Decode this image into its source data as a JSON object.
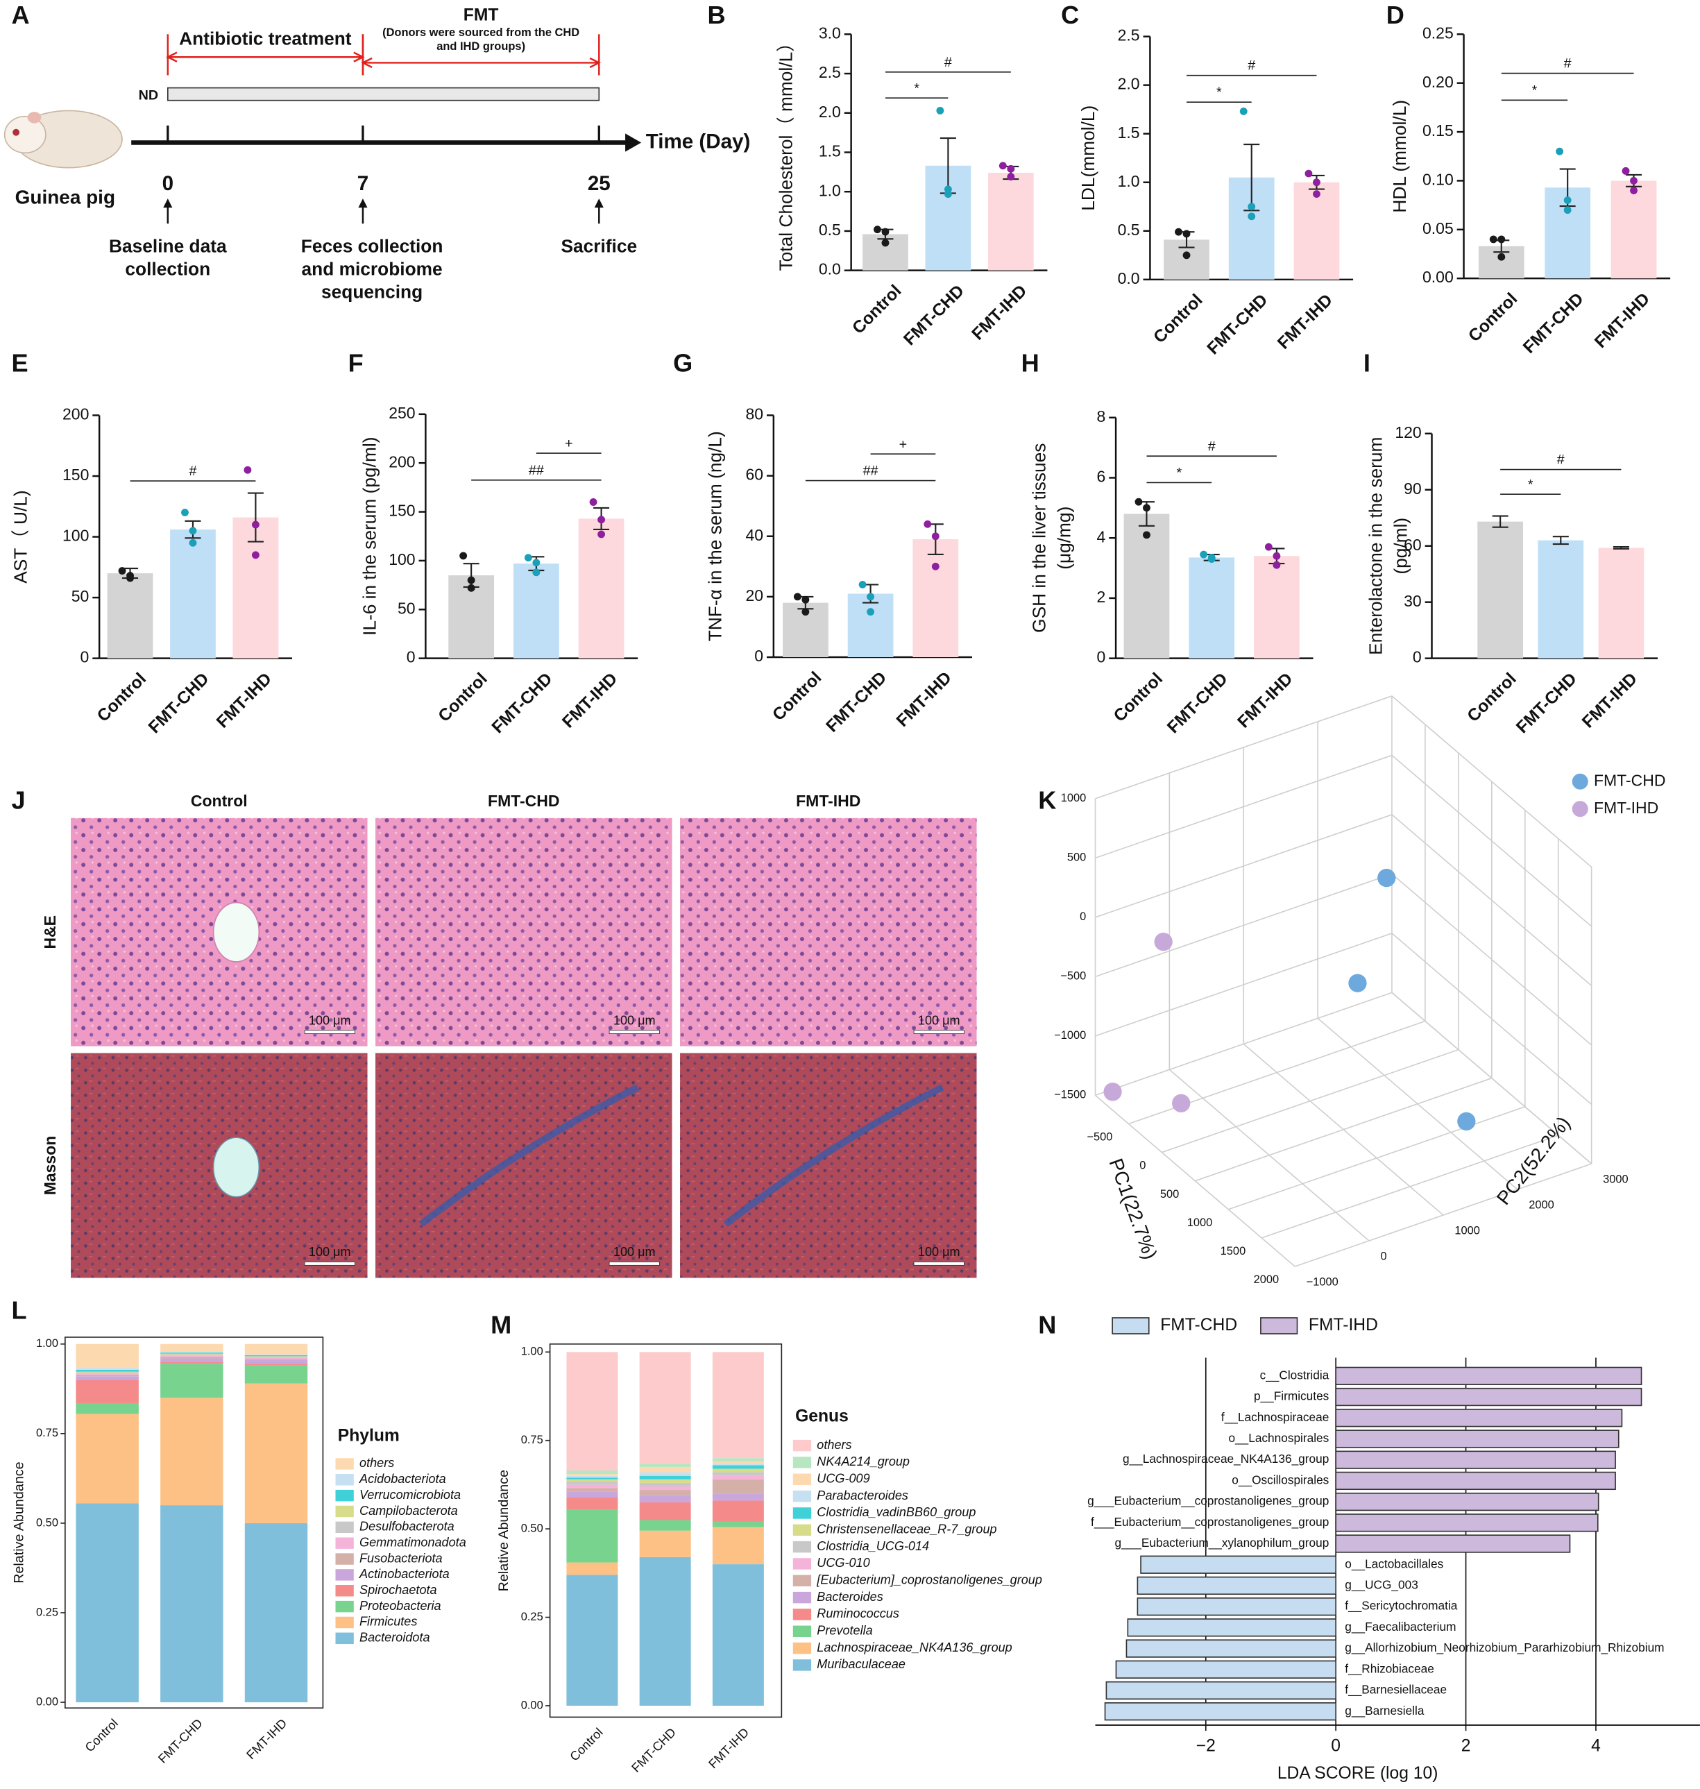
{
  "timeline": {
    "panel": "A",
    "subject": "Guinea pig",
    "diet": "ND",
    "axis_label": "Time (Day)",
    "phases": [
      {
        "label": "Antibiotic treatment"
      },
      {
        "label": "FMT",
        "note": [
          "(Donors were sourced from the CHD",
          "and IHD groups)"
        ]
      }
    ],
    "days": [
      0,
      7,
      25
    ],
    "events": [
      [
        "Baseline data",
        "collection"
      ],
      [
        "Feces collection",
        "and microbiome",
        "sequencing"
      ],
      [
        "Sacrifice"
      ]
    ]
  },
  "histology": {
    "panel": "J",
    "columns": [
      "Control",
      "FMT-CHD",
      "FMT-IHD"
    ],
    "rows": [
      "H&E",
      "Masson"
    ],
    "scale_bar": "100 μm"
  },
  "chart_data": [
    {
      "panel": "B",
      "type": "bar",
      "ylabel": "Total Cholesterol（ mmol/L）",
      "categories": [
        "Control",
        "FMT-CHD",
        "FMT-IHD"
      ],
      "values": [
        0.46,
        1.33,
        1.24
      ],
      "errors": [
        0.06,
        0.35,
        0.08
      ],
      "points": [
        [
          0.52,
          0.49,
          0.35
        ],
        [
          2.03,
          1.03,
          0.97
        ],
        [
          1.33,
          1.29,
          1.19
        ]
      ],
      "colors": [
        "#d4d4d4",
        "#bfdff7",
        "#fdd9dd"
      ],
      "point_colors": [
        "#1a1a1a",
        "#1aa0b8",
        "#8e1f9e"
      ],
      "ylim": [
        0,
        3
      ],
      "yticks": [
        {
          "value": 0,
          "label": "0.0"
        },
        0.5,
        {
          "value": 1,
          "label": "1.0"
        },
        1.5,
        {
          "value": 2,
          "label": "2.0"
        },
        2.5,
        {
          "value": 3,
          "label": "3.0"
        }
      ],
      "comparisons": [
        {
          "label": "*",
          "pair": [
            "Control",
            "FMT-CHD"
          ]
        },
        {
          "label": "#",
          "pair": [
            "Control",
            "FMT-IHD"
          ]
        }
      ]
    },
    {
      "panel": "C",
      "type": "bar",
      "ylabel": "LDL(mmol/L)",
      "categories": [
        "Control",
        "FMT-CHD",
        "FMT-IHD"
      ],
      "values": [
        0.41,
        1.05,
        1.0
      ],
      "errors": [
        0.08,
        0.34,
        0.07
      ],
      "points": [
        [
          0.49,
          0.47,
          0.25
        ],
        [
          1.73,
          0.75,
          0.65
        ],
        [
          1.09,
          1.0,
          0.88
        ]
      ],
      "colors": [
        "#d4d4d4",
        "#bfdff7",
        "#fdd9dd"
      ],
      "point_colors": [
        "#1a1a1a",
        "#1aa0b8",
        "#8e1f9e"
      ],
      "ylim": [
        0,
        2.5
      ],
      "yticks": [
        {
          "value": 0,
          "label": "0.0"
        },
        0.5,
        {
          "value": 1,
          "label": "1.0"
        },
        1.5,
        {
          "value": 2,
          "label": "2.0"
        },
        2.5
      ],
      "comparisons": [
        {
          "label": "*",
          "pair": [
            "Control",
            "FMT-CHD"
          ]
        },
        {
          "label": "#",
          "pair": [
            "Control",
            "FMT-IHD"
          ]
        }
      ]
    },
    {
      "panel": "D",
      "type": "bar",
      "ylabel": "HDL (mmol/L)",
      "categories": [
        "Control",
        "FMT-CHD",
        "FMT-IHD"
      ],
      "values": [
        0.033,
        0.093,
        0.1
      ],
      "errors": [
        0.006,
        0.019,
        0.006
      ],
      "points": [
        [
          0.04,
          0.04,
          0.022
        ],
        [
          0.13,
          0.08,
          0.07
        ],
        [
          0.11,
          0.1,
          0.09
        ]
      ],
      "colors": [
        "#d4d4d4",
        "#bfdff7",
        "#fdd9dd"
      ],
      "point_colors": [
        "#1a1a1a",
        "#1aa0b8",
        "#8e1f9e"
      ],
      "ylim": [
        0,
        0.25
      ],
      "yticks": [
        {
          "value": 0,
          "label": "0.00"
        },
        0.05,
        {
          "value": 0.1,
          "label": "0.10"
        },
        0.15,
        {
          "value": 0.2,
          "label": "0.20"
        },
        0.25
      ],
      "comparisons": [
        {
          "label": "*",
          "pair": [
            "Control",
            "FMT-CHD"
          ]
        },
        {
          "label": "#",
          "pair": [
            "Control",
            "FMT-IHD"
          ]
        }
      ]
    },
    {
      "panel": "E",
      "type": "bar",
      "ylabel": "AST（ U/L)",
      "categories": [
        "Control",
        "FMT-CHD",
        "FMT-IHD"
      ],
      "values": [
        70,
        106,
        116
      ],
      "errors": [
        4,
        7,
        20
      ],
      "points": [
        [
          72,
          68,
          66
        ],
        [
          120,
          105,
          95
        ],
        [
          155,
          110,
          85
        ]
      ],
      "colors": [
        "#d4d4d4",
        "#bfdff7",
        "#fdd9dd"
      ],
      "point_colors": [
        "#1a1a1a",
        "#1aa0b8",
        "#8e1f9e"
      ],
      "ylim": [
        0,
        200
      ],
      "yticks": [
        0,
        50,
        100,
        150,
        200
      ],
      "comparisons": [
        {
          "label": "#",
          "pair": [
            "Control",
            "FMT-IHD"
          ]
        }
      ]
    },
    {
      "panel": "F",
      "type": "bar",
      "ylabel": "IL-6 in the serum (pg/ml)",
      "categories": [
        "Control",
        "FMT-CHD",
        "FMT-IHD"
      ],
      "values": [
        85,
        97,
        143
      ],
      "errors": [
        12,
        7,
        11
      ],
      "points": [
        [
          105,
          80,
          72
        ],
        [
          103,
          98,
          88
        ],
        [
          160,
          142,
          127
        ]
      ],
      "colors": [
        "#d4d4d4",
        "#bfdff7",
        "#fdd9dd"
      ],
      "point_colors": [
        "#1a1a1a",
        "#1aa0b8",
        "#8e1f9e"
      ],
      "ylim": [
        0,
        250
      ],
      "yticks": [
        0,
        50,
        100,
        150,
        200,
        250
      ],
      "comparisons": [
        {
          "label": "##",
          "pair": [
            "Control",
            "FMT-IHD"
          ]
        },
        {
          "label": "+",
          "pair": [
            "FMT-CHD",
            "FMT-IHD"
          ]
        }
      ]
    },
    {
      "panel": "G",
      "type": "bar",
      "ylabel": "TNF-α in the serum (ng/L)",
      "categories": [
        "Control",
        "FMT-CHD",
        "FMT-IHD"
      ],
      "values": [
        18,
        21,
        39
      ],
      "errors": [
        2,
        3,
        5
      ],
      "points": [
        [
          20,
          19,
          15
        ],
        [
          24,
          20,
          15
        ],
        [
          44,
          40,
          30
        ]
      ],
      "colors": [
        "#d4d4d4",
        "#bfdff7",
        "#fdd9dd"
      ],
      "point_colors": [
        "#1a1a1a",
        "#1aa0b8",
        "#8e1f9e"
      ],
      "ylim": [
        0,
        80
      ],
      "yticks": [
        0,
        20,
        40,
        60,
        80
      ],
      "comparisons": [
        {
          "label": "##",
          "pair": [
            "Control",
            "FMT-IHD"
          ]
        },
        {
          "label": "+",
          "pair": [
            "FMT-CHD",
            "FMT-IHD"
          ]
        }
      ]
    },
    {
      "panel": "H",
      "type": "bar",
      "ylabel": [
        "GSH in the liver tissues",
        "(μg/mg)"
      ],
      "categories": [
        "Control",
        "FMT-CHD",
        "FMT-IHD"
      ],
      "values": [
        4.8,
        3.35,
        3.4
      ],
      "errors": [
        0.4,
        0.1,
        0.25
      ],
      "points": [
        [
          5.2,
          5.0,
          4.1
        ],
        [
          3.45,
          3.35,
          3.3
        ],
        [
          3.7,
          3.4,
          3.1
        ]
      ],
      "colors": [
        "#d4d4d4",
        "#bfdff7",
        "#fdd9dd"
      ],
      "point_colors": [
        "#1a1a1a",
        "#1aa0b8",
        "#8e1f9e"
      ],
      "ylim": [
        0,
        8
      ],
      "yticks": [
        0,
        2,
        4,
        6,
        8
      ],
      "comparisons": [
        {
          "label": "*",
          "pair": [
            "Control",
            "FMT-CHD"
          ]
        },
        {
          "label": "#",
          "pair": [
            "Control",
            "FMT-IHD"
          ]
        }
      ]
    },
    {
      "panel": "I",
      "type": "bar",
      "ylabel": [
        "Enterolactone in the serum",
        "(pg/ml)"
      ],
      "categories": [
        "Control",
        "FMT-CHD",
        "FMT-IHD"
      ],
      "values": [
        73,
        63,
        59
      ],
      "errors": [
        3,
        2,
        0.5
      ],
      "colors": [
        "#d4d4d4",
        "#bfdff7",
        "#fdd9dd"
      ],
      "ylim": [
        0,
        120
      ],
      "yticks": [
        0,
        30,
        60,
        90,
        120
      ],
      "comparisons": [
        {
          "label": "*",
          "pair": [
            "Control",
            "FMT-CHD"
          ]
        },
        {
          "label": "#",
          "pair": [
            "Control",
            "FMT-IHD"
          ]
        }
      ]
    },
    {
      "panel": "K",
      "type": "scatter3d",
      "xlabel": "PC1(22.7%)",
      "ylabel": "PC2(52.2%)",
      "xlim": [
        -1000,
        2000
      ],
      "xticks": [
        {
          "value": -500,
          "label": "−500"
        },
        0,
        500,
        1000,
        1500,
        2000
      ],
      "ylim": [
        -1000,
        3000
      ],
      "yticks": [
        {
          "value": -1000,
          "label": "−1000"
        },
        0,
        1000,
        2000,
        3000
      ],
      "zlim": [
        -1500,
        1000
      ],
      "zticks": [
        {
          "value": -1500,
          "label": "−1500"
        },
        {
          "value": -1000,
          "label": "−1000"
        },
        {
          "value": -500,
          "label": "−500"
        },
        0,
        500,
        1000
      ],
      "series": [
        {
          "name": "FMT-CHD",
          "color": "#6ea9dd",
          "x": [
            -100,
            200,
            1100
          ],
          "y": [
            2120,
            1460,
            2120
          ],
          "z": [
            90,
            -510,
            -1385
          ]
        },
        {
          "name": "FMT-IHD",
          "color": "#c6a9d8",
          "x": [
            -850,
            -100,
            -400
          ],
          "y": [
            -900,
            -650,
            -620
          ],
          "z": [
            -1420,
            -1210,
            0
          ]
        }
      ]
    },
    {
      "panel": "L",
      "type": "stacked_bar",
      "ylabel": "Relative Abundance",
      "legend_title": "Phylum",
      "categories": [
        "Control",
        "FMT-CHD",
        "FMT-IHD"
      ],
      "ylim": [
        0,
        1
      ],
      "yticks": [
        {
          "value": 0,
          "label": "0.00"
        },
        {
          "value": 0.25,
          "label": "0.25"
        },
        {
          "value": 0.5,
          "label": "0.50"
        },
        {
          "value": 0.75,
          "label": "0.75"
        },
        {
          "value": 1,
          "label": "1.00"
        }
      ],
      "series": [
        {
          "name": "Bacteroidota",
          "color": "#7fbfdc",
          "values": [
            0.555,
            0.55,
            0.5
          ]
        },
        {
          "name": "Firmicutes",
          "color": "#fdc185",
          "values": [
            0.25,
            0.3,
            0.39
          ]
        },
        {
          "name": "Proteobacteria",
          "color": "#78d38f",
          "values": [
            0.03,
            0.095,
            0.05
          ]
        },
        {
          "name": "Spirochaetota",
          "color": "#f48a8a",
          "values": [
            0.065,
            0.005,
            0.005
          ]
        },
        {
          "name": "Actinobacteriota",
          "color": "#c9a6dc",
          "values": [
            0.01,
            0.01,
            0.01
          ]
        },
        {
          "name": "Fusobacteriota",
          "color": "#d4b0a8",
          "values": [
            0.005,
            0.005,
            0.003
          ]
        },
        {
          "name": "Gemmatimonadota",
          "color": "#f6b3d9",
          "values": [
            0.003,
            0.003,
            0.003
          ]
        },
        {
          "name": "Desulfobacterota",
          "color": "#c8c8c8",
          "values": [
            0.003,
            0.003,
            0.003
          ]
        },
        {
          "name": "Campilobacterota",
          "color": "#d7dc8a",
          "values": [
            0.002,
            0.002,
            0.002
          ]
        },
        {
          "name": "Verrucomicrobiota",
          "color": "#40d0d8",
          "values": [
            0.005,
            0.003,
            0.003
          ]
        },
        {
          "name": "Acidobacteriota",
          "color": "#c6e0f2",
          "values": [
            0.005,
            0.004,
            0.002
          ]
        },
        {
          "name": "others",
          "color": "#fdd9b0",
          "values": [
            0.067,
            0.02,
            0.029
          ]
        }
      ]
    },
    {
      "panel": "M",
      "type": "stacked_bar",
      "ylabel": "Relative Abundance",
      "legend_title": "Genus",
      "categories": [
        "Control",
        "FMT-CHD",
        "FMT-IHD"
      ],
      "ylim": [
        0,
        1
      ],
      "yticks": [
        {
          "value": 0,
          "label": "0.00"
        },
        {
          "value": 0.25,
          "label": "0.25"
        },
        {
          "value": 0.5,
          "label": "0.50"
        },
        {
          "value": 0.75,
          "label": "0.75"
        },
        {
          "value": 1,
          "label": "1.00"
        }
      ],
      "series": [
        {
          "name": "Muribaculaceae",
          "color": "#7fbfdc",
          "values": [
            0.37,
            0.42,
            0.4
          ]
        },
        {
          "name": "Lachnospiraceae_NK4A136_group",
          "color": "#fdc185",
          "values": [
            0.035,
            0.075,
            0.105
          ]
        },
        {
          "name": "Prevotella",
          "color": "#78d38f",
          "values": [
            0.15,
            0.03,
            0.015
          ]
        },
        {
          "name": "Ruminococcus",
          "color": "#f48a8a",
          "values": [
            0.035,
            0.05,
            0.06
          ]
        },
        {
          "name": "Bacteroides",
          "color": "#c9a6dc",
          "values": [
            0.015,
            0.02,
            0.02
          ]
        },
        {
          "name": "[Eubacterium]_coprostanoligenes_group",
          "color": "#d4b0a8",
          "values": [
            0.01,
            0.015,
            0.04
          ]
        },
        {
          "name": "UCG-010",
          "color": "#f6b3d9",
          "values": [
            0.01,
            0.01,
            0.01
          ]
        },
        {
          "name": "Clostridia_UCG-014",
          "color": "#c8c8c8",
          "values": [
            0.01,
            0.01,
            0.01
          ]
        },
        {
          "name": "Christensenellaceae_R-7_group",
          "color": "#d7dc8a",
          "values": [
            0.005,
            0.01,
            0.01
          ]
        },
        {
          "name": "Clostridia_vadinBB60_group",
          "color": "#40d0d8",
          "values": [
            0.005,
            0.01,
            0.01
          ]
        },
        {
          "name": "Parabacteroides",
          "color": "#c6e0f2",
          "values": [
            0.005,
            0.01,
            0.005
          ]
        },
        {
          "name": "UCG-009",
          "color": "#fdd9b0",
          "values": [
            0.005,
            0.015,
            0.005
          ]
        },
        {
          "name": "NK4A214_group",
          "color": "#b8e6c0",
          "values": [
            0.01,
            0.01,
            0.01
          ]
        },
        {
          "name": "others",
          "color": "#fdcbcb",
          "values": [
            0.335,
            0.315,
            0.3
          ]
        }
      ]
    },
    {
      "panel": "N",
      "type": "hbar",
      "xlabel": "LDA SCORE (log 10)",
      "xlim": [
        -3.7,
        5.6
      ],
      "xticks": [
        {
          "value": -2,
          "label": "−2"
        },
        0,
        2,
        4
      ],
      "categories": [
        "c__Clostridia",
        "p__Firmicutes",
        "f__Lachnospiraceae",
        "o__Lachnospirales",
        "g__Lachnospiraceae_NK4A136_group",
        "o__Oscillospirales",
        "g___Eubacterium__coprostanoligenes_group",
        "f___Eubacterium__coprostanoligenes_group",
        "g___Eubacterium__xylanophilum_group",
        "o__Lactobacillales",
        "g__UCG_003",
        "f__Sericytochromatia",
        "g__Faecalibacterium",
        "g__Allorhizobium_Neorhizobium_Pararhizobium_Rhizobium",
        "f__Rhizobiaceae",
        "f__Barnesiellaceae",
        "g__Barnesiella"
      ],
      "series": [
        {
          "name": "FMT-CHD",
          "color": "#c6dcf0",
          "values": [
            null,
            null,
            null,
            null,
            null,
            null,
            null,
            null,
            null,
            -3.0,
            -3.05,
            -3.05,
            -3.2,
            -3.22,
            -3.38,
            -3.53,
            -3.55
          ]
        },
        {
          "name": "FMT-IHD",
          "color": "#cdb9dc",
          "values": [
            4.7,
            4.7,
            4.4,
            4.35,
            4.3,
            4.3,
            4.04,
            4.03,
            3.6,
            null,
            null,
            null,
            null,
            null,
            null,
            null,
            null
          ]
        }
      ]
    }
  ]
}
